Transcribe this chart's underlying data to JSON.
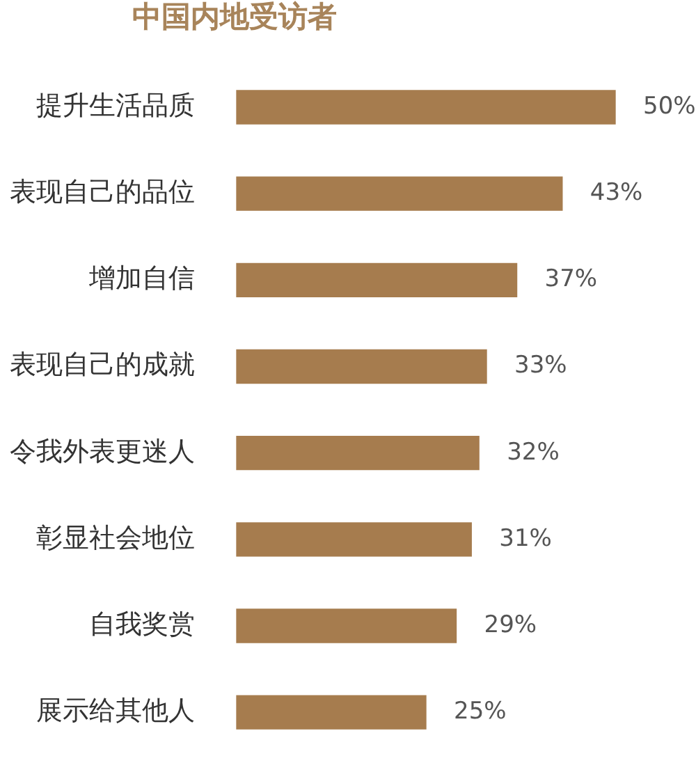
{
  "chart_data": {
    "type": "bar",
    "orientation": "horizontal",
    "title": "中国内地受访者",
    "categories": [
      "提升生活品质",
      "表现自己的品位",
      "增加自信",
      "表现自己的成就",
      "令我外表更迷人",
      "彰显社会地位",
      "自我奖赏",
      "展示给其他人"
    ],
    "values": [
      50,
      43,
      37,
      33,
      32,
      31,
      29,
      25
    ],
    "color": "#a67c4e",
    "value_labels": [
      "50%",
      "43%",
      "37%",
      "33%",
      "32%",
      "31%",
      "29%",
      "25%"
    ],
    "tick_labels": "y"
  }
}
